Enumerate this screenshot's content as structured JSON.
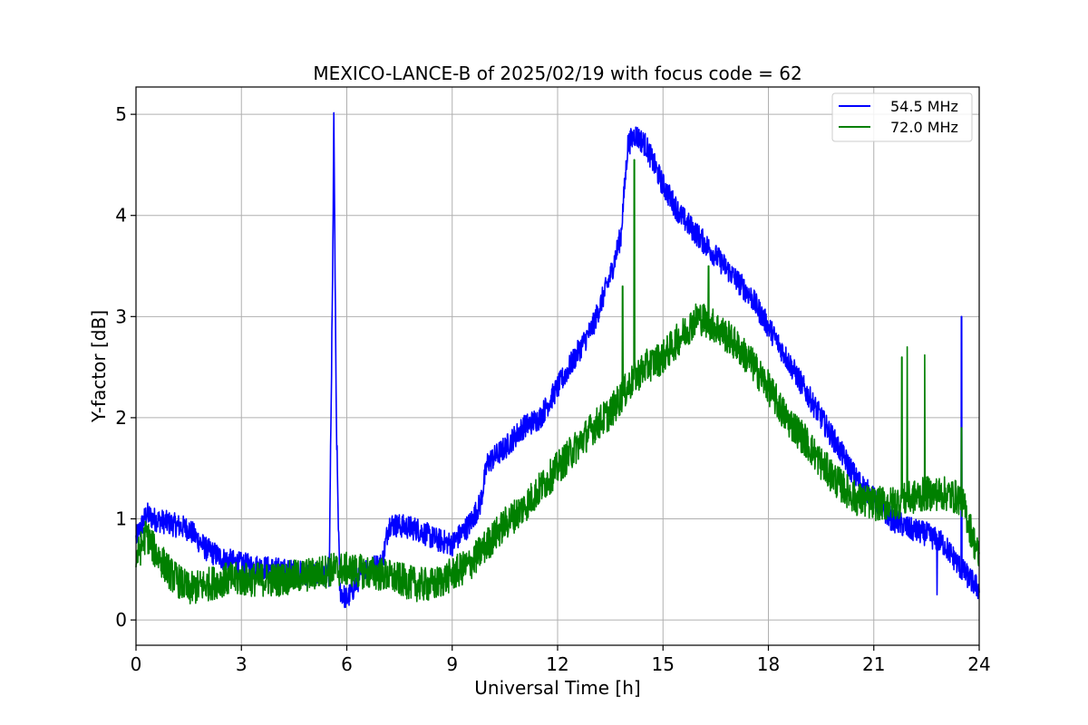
{
  "chart_data": {
    "type": "line",
    "title": "MEXICO-LANCE-B of 2025/02/19 with focus code = 62",
    "xlabel": "Universal Time [h]",
    "ylabel": "Y-factor [dB]",
    "xlim": [
      0,
      24
    ],
    "ylim": [
      -0.25,
      5.27
    ],
    "xticks": [
      "0",
      "3",
      "6",
      "9",
      "12",
      "15",
      "18",
      "21",
      "24"
    ],
    "yticks": [
      "0",
      "1",
      "2",
      "3",
      "4",
      "5"
    ],
    "grid": true,
    "legend_position": "top-right",
    "series": [
      {
        "name": "54.5 MHz",
        "color": "#0000ff",
        "noise": 0.12,
        "x": [
          0,
          0.3,
          0.5,
          1.0,
          1.5,
          2.0,
          2.5,
          3.0,
          4.0,
          5.0,
          5.5,
          5.6,
          5.63,
          5.7,
          5.8,
          6.0,
          6.5,
          7.0,
          7.2,
          8.0,
          8.5,
          9.0,
          9.5,
          9.8,
          10.0,
          10.5,
          11.0,
          11.5,
          12.0,
          12.5,
          13.0,
          13.5,
          13.8,
          14.0,
          14.2,
          14.5,
          15.0,
          15.5,
          16.0,
          16.5,
          17.0,
          17.5,
          18.0,
          18.5,
          19.0,
          19.5,
          20.0,
          20.5,
          21.0,
          21.5,
          22.0,
          22.5,
          23.0,
          23.5,
          24.0
        ],
        "y": [
          0.8,
          1.05,
          1.0,
          0.95,
          0.9,
          0.7,
          0.6,
          0.55,
          0.5,
          0.45,
          0.45,
          3.5,
          5.0,
          2.0,
          0.3,
          0.2,
          0.5,
          0.55,
          0.95,
          0.9,
          0.8,
          0.75,
          0.95,
          1.15,
          1.55,
          1.7,
          1.9,
          2.0,
          2.3,
          2.6,
          2.9,
          3.4,
          3.8,
          4.7,
          4.8,
          4.7,
          4.3,
          4.0,
          3.8,
          3.6,
          3.4,
          3.2,
          2.9,
          2.6,
          2.3,
          2.0,
          1.7,
          1.4,
          1.2,
          1.0,
          0.9,
          0.85,
          0.75,
          0.5,
          0.3
        ]
      },
      {
        "name": "72.0 MHz",
        "color": "#008000",
        "noise": 0.17,
        "x": [
          0,
          0.3,
          0.5,
          1.0,
          1.5,
          2.0,
          2.5,
          3.0,
          4.0,
          5.0,
          5.6,
          6.0,
          7.0,
          8.0,
          8.5,
          9.0,
          9.5,
          10.0,
          10.5,
          11.0,
          11.5,
          12.0,
          12.5,
          13.0,
          13.5,
          14.0,
          14.2,
          14.5,
          15.0,
          15.5,
          16.0,
          16.5,
          17.0,
          17.5,
          18.0,
          18.5,
          19.0,
          19.5,
          20.0,
          20.5,
          21.0,
          21.5,
          22.0,
          22.5,
          23.0,
          23.5,
          24.0
        ],
        "y": [
          0.6,
          0.85,
          0.7,
          0.45,
          0.3,
          0.35,
          0.4,
          0.4,
          0.4,
          0.45,
          0.5,
          0.5,
          0.45,
          0.35,
          0.35,
          0.45,
          0.55,
          0.75,
          0.95,
          1.1,
          1.3,
          1.5,
          1.7,
          1.9,
          2.05,
          2.3,
          2.4,
          2.5,
          2.6,
          2.8,
          3.0,
          2.9,
          2.75,
          2.55,
          2.3,
          2.0,
          1.8,
          1.55,
          1.35,
          1.2,
          1.15,
          1.15,
          1.2,
          1.25,
          1.25,
          1.2,
          0.6
        ]
      }
    ],
    "spikes": [
      {
        "series": 1,
        "x": 13.85,
        "y": 3.3
      },
      {
        "series": 1,
        "x": 14.18,
        "y": 4.55
      },
      {
        "series": 1,
        "x": 16.3,
        "y": 3.5
      },
      {
        "series": 1,
        "x": 21.8,
        "y": 2.6
      },
      {
        "series": 1,
        "x": 21.95,
        "y": 2.7
      },
      {
        "series": 1,
        "x": 22.45,
        "y": 2.62
      },
      {
        "series": 1,
        "x": 23.5,
        "y": 1.9
      },
      {
        "series": 0,
        "x": 23.5,
        "y": 3.0
      },
      {
        "series": 0,
        "x": 22.8,
        "y": 0.25
      }
    ]
  }
}
